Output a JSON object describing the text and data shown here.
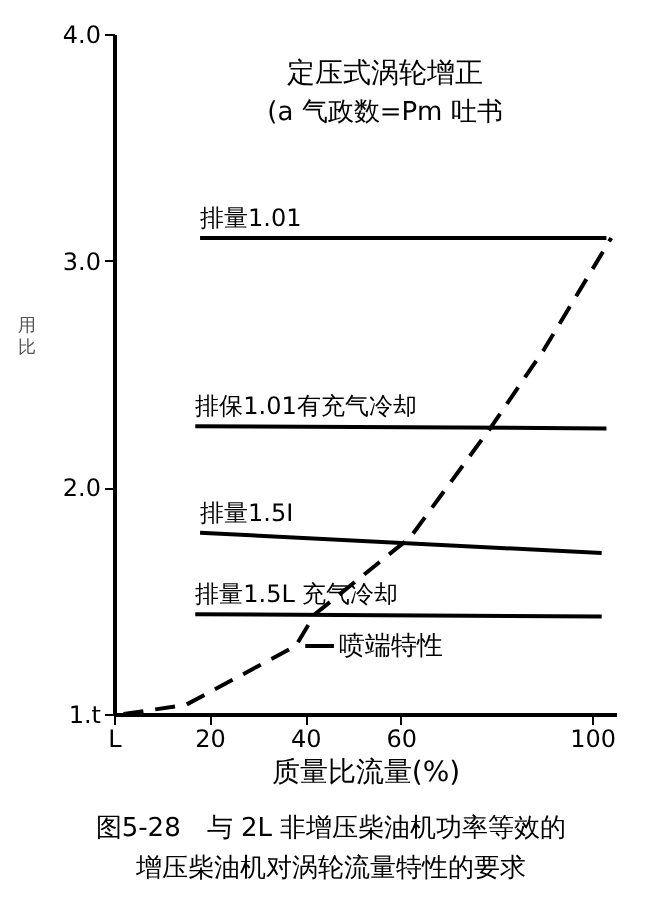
{
  "chart_data": {
    "type": "line",
    "title": "定压式涡轮增正",
    "subtitle": "(a   气政数=Pm  吐书",
    "xlabel": "质量比流量(%)",
    "ylabel": "用比",
    "xlim": [
      0,
      105
    ],
    "xticks": [
      {
        "value": 0,
        "label": "L"
      },
      20,
      40,
      60,
      100
    ],
    "ylim": [
      1.0,
      4.0
    ],
    "yticks": [
      {
        "value": 1.0,
        "label": "1.t"
      },
      {
        "value": 2.0,
        "label": "2.0"
      },
      {
        "value": 3.0,
        "label": "3.0"
      },
      {
        "value": 4.0,
        "label": "4.0"
      }
    ],
    "line_style": "solid",
    "series": [
      {
        "name": "排量1.01",
        "color": "#000000",
        "x": [
          18,
          103
        ],
        "values": [
          3.1,
          3.1
        ]
      },
      {
        "name": "排保1.01有充气冷却",
        "color": "#000000",
        "x": [
          17,
          103
        ],
        "values": [
          2.27,
          2.26
        ]
      },
      {
        "name": "排量1.5I",
        "color": "#000000",
        "x": [
          18,
          102
        ],
        "values": [
          1.8,
          1.71
        ]
      },
      {
        "name": "排量1.5L 充气冷却",
        "color": "#000000",
        "x": [
          17,
          102
        ],
        "values": [
          1.44,
          1.43
        ]
      },
      {
        "color": "#000000",
        "line_style": "dashed",
        "x": [
          2,
          15,
          38,
          42,
          62,
          79,
          90,
          104
        ],
        "values": [
          1.0,
          1.04,
          1.3,
          1.44,
          1.78,
          2.27,
          2.61,
          3.1
        ]
      }
    ],
    "annotations": [
      {
        "text": "喷端特性",
        "x": 40,
        "y": 1.3
      },
      "图5-28　与 2L 非增压柴油机功率等效的",
      "增压柴油机对涡轮流量特性的要求"
    ]
  }
}
